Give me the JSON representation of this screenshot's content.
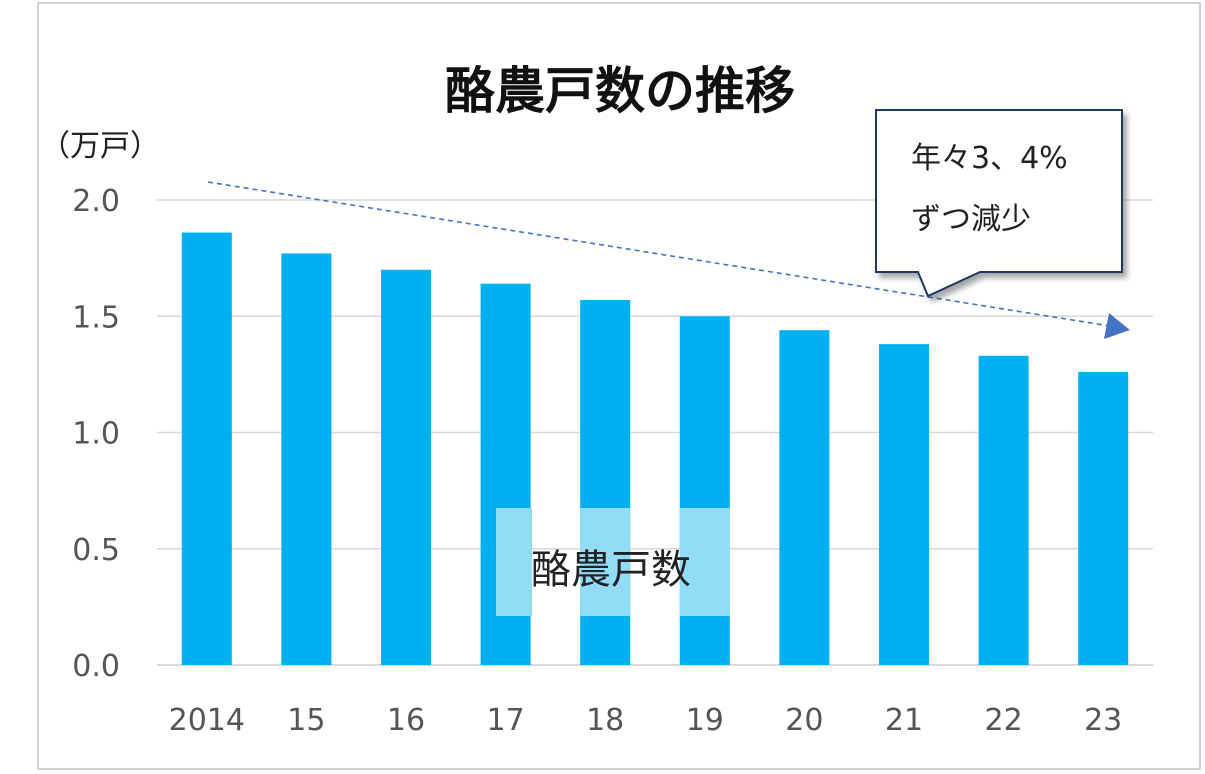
{
  "chart_data": {
    "type": "bar",
    "title": "酪農戸数の推移",
    "unit_label": "（万戸）",
    "categories": [
      "2014",
      "15",
      "16",
      "17",
      "18",
      "19",
      "20",
      "21",
      "22",
      "23"
    ],
    "series": [
      {
        "name": "酪農戸数",
        "values": [
          1.86,
          1.77,
          1.7,
          1.64,
          1.57,
          1.5,
          1.44,
          1.38,
          1.33,
          1.26
        ],
        "color": "#00b0f0"
      }
    ],
    "ylim": [
      0,
      2.0
    ],
    "y_ticks": [
      "0.0",
      "0.5",
      "1.0",
      "1.5",
      "2.0"
    ],
    "grid": true,
    "legend": "none",
    "annotation": {
      "lines": [
        "年々3、4%",
        "ずつ減少"
      ],
      "trend_arrow_color": "#4472c4"
    },
    "colors": {
      "bar": "#00b0f0",
      "gridline": "#d9d9d9",
      "label_highlight": "#92dcf7",
      "callout_border": "#1f3864"
    }
  }
}
